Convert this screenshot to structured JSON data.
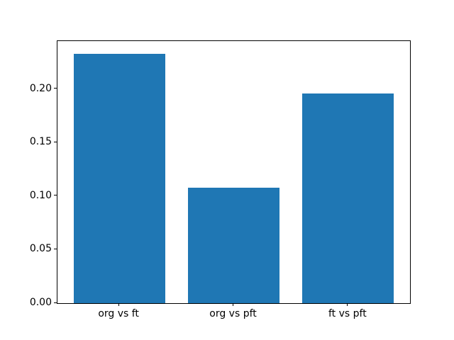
{
  "figure": {
    "background": "#ffffff"
  },
  "chart_data": {
    "type": "bar",
    "categories": [
      "org vs ft",
      "org vs pft",
      "ft vs pft"
    ],
    "values": [
      0.233,
      0.108,
      0.196
    ],
    "title": "",
    "xlabel": "",
    "ylabel": "",
    "ylim": [
      0,
      0.2447
    ],
    "yticks": [
      0.0,
      0.05,
      0.1,
      0.15,
      0.2
    ],
    "ytick_labels": [
      "0.00",
      "0.05",
      "0.10",
      "0.15",
      "0.20"
    ],
    "bar_color": "#1f77b4",
    "axis_color": "#000000",
    "bar_width_fraction": 0.8,
    "x_margin": 0.05,
    "grid": false,
    "legend_position": "none"
  }
}
